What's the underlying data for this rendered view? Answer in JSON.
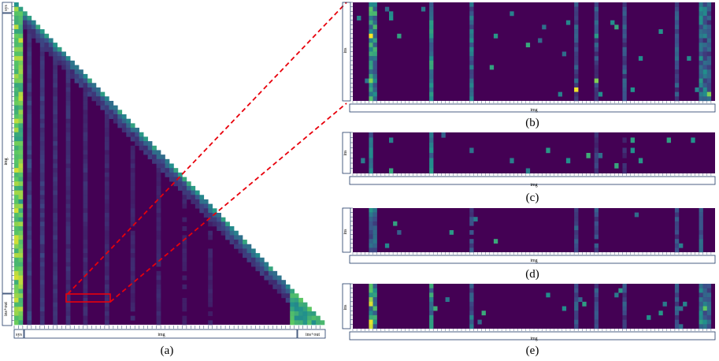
{
  "figure": {
    "panel_a": {
      "caption": "(a)",
      "axis_bottom": [
        "sys",
        "img",
        "ins+out"
      ],
      "axis_left": [
        "sys",
        "img",
        "ins+out"
      ]
    },
    "panel_b": {
      "caption": "(b)",
      "axis_left": "ins",
      "axis_bottom": "img"
    },
    "panel_c": {
      "caption": "(c)",
      "axis_left": "ins",
      "axis_bottom": "img"
    },
    "panel_d": {
      "caption": "(d)",
      "axis_left": "ins",
      "axis_bottom": "img"
    },
    "panel_e": {
      "caption": "(e)",
      "axis_left": "ins",
      "axis_bottom": "img"
    }
  },
  "colors": {
    "background_cell": "#440154",
    "highlight_box": "#e8000b",
    "connector": "#e8000b",
    "axis_frame": "#1f3864",
    "colormap": [
      "#440154",
      "#3b528b",
      "#21918c",
      "#5ec962",
      "#fde725"
    ]
  }
}
